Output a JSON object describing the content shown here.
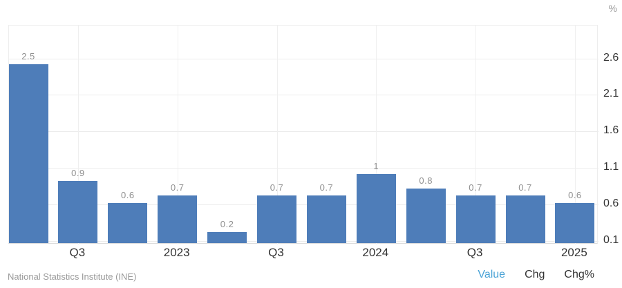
{
  "chart_data": {
    "type": "bar",
    "title": "",
    "unit": "%",
    "categories": [
      "",
      "Q3",
      "",
      "2023",
      "",
      "Q3",
      "",
      "2024",
      "",
      "Q3",
      "",
      "2025"
    ],
    "values": [
      2.5,
      0.9,
      0.6,
      0.7,
      0.2,
      0.7,
      0.7,
      1,
      0.8,
      0.7,
      0.7,
      0.6
    ],
    "bar_labels": [
      "2.5",
      "0.9",
      "0.6",
      "0.7",
      "0.2",
      "0.7",
      "0.7",
      "1",
      "0.8",
      "0.7",
      "0.7",
      "0.6"
    ],
    "y_ticks": [
      "0.1",
      "0.6",
      "1.1",
      "1.6",
      "2.1",
      "2.6"
    ],
    "ylim": [
      0.05,
      3.05
    ],
    "grid": true,
    "legend_position": "none",
    "colors": {
      "bar": "#4e7db9",
      "value_label": "#8f8f8f",
      "axis_label": "#333333",
      "grid": "#ececec",
      "active_toggle": "#4aa3d6"
    }
  },
  "footer": {
    "source": "National Statistics Institute (INE)",
    "toggles": [
      {
        "label": "Value",
        "active": true
      },
      {
        "label": "Chg",
        "active": false
      },
      {
        "label": "Chg%",
        "active": false
      }
    ]
  }
}
